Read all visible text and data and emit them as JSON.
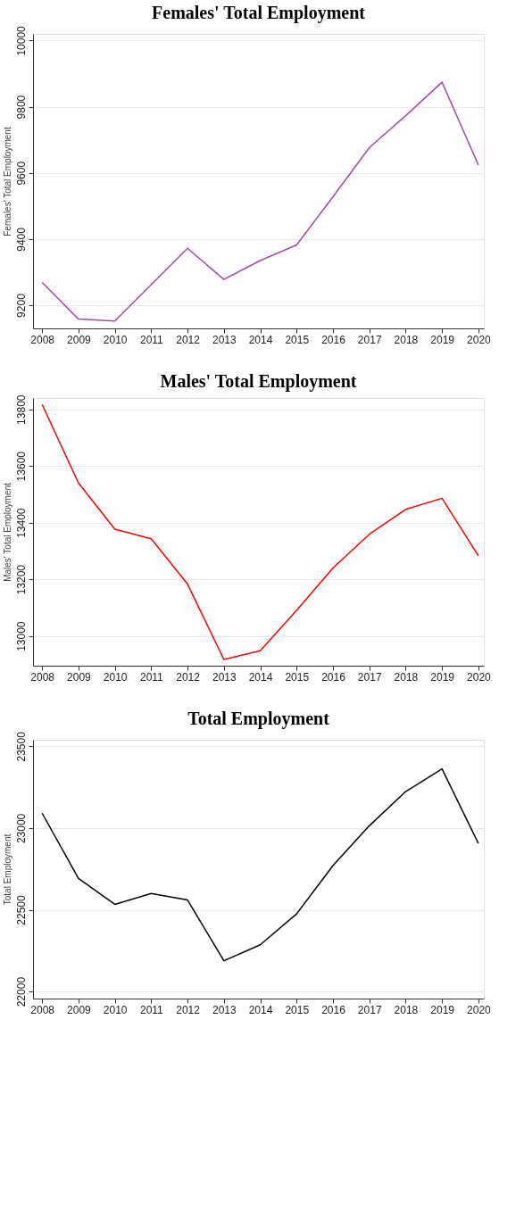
{
  "chart_data": [
    {
      "type": "line",
      "title": "Females' Total Employment",
      "ylabel": "Females' Total Employment",
      "categories": [
        "2008",
        "2009",
        "2010",
        "2011",
        "2012",
        "2013",
        "2014",
        "2015",
        "2016",
        "2017",
        "2018",
        "2019",
        "2020"
      ],
      "series": [
        {
          "color": "#a64ca6",
          "values": [
            9269,
            9158,
            9152,
            9262,
            9372,
            9278,
            9335,
            9382,
            9528,
            9676,
            9773,
            9874,
            9624
          ]
        }
      ],
      "ylim": [
        9130,
        10020
      ],
      "yticks": [
        9200,
        9400,
        9600,
        9800,
        10000
      ],
      "grid": "y"
    },
    {
      "type": "line",
      "title": "Males' Total Employment",
      "ylabel": "Males' Total Employment",
      "categories": [
        "2008",
        "2009",
        "2010",
        "2011",
        "2012",
        "2013",
        "2014",
        "2015",
        "2016",
        "2017",
        "2018",
        "2019",
        "2020"
      ],
      "series": [
        {
          "color": "#ff0000",
          "values": [
            13817,
            13540,
            13377,
            13343,
            13183,
            12917,
            12948,
            13090,
            13240,
            13359,
            13447,
            13486,
            13283
          ]
        }
      ],
      "ylim": [
        12895,
        13840
      ],
      "yticks": [
        13000,
        13200,
        13400,
        13600,
        13800
      ],
      "grid": "y"
    },
    {
      "type": "line",
      "title": "Total Employment",
      "ylabel": "Total Employment",
      "categories": [
        "2008",
        "2009",
        "2010",
        "2011",
        "2012",
        "2013",
        "2014",
        "2015",
        "2016",
        "2017",
        "2018",
        "2019",
        "2020"
      ],
      "series": [
        {
          "color": "#000000",
          "values": [
            23091,
            22692,
            22533,
            22600,
            22560,
            22188,
            22286,
            22475,
            22770,
            23014,
            23223,
            23362,
            22906
          ]
        }
      ],
      "ylim": [
        21957,
        23540
      ],
      "yticks": [
        22000,
        22500,
        23000,
        23500
      ],
      "grid": "y"
    }
  ]
}
